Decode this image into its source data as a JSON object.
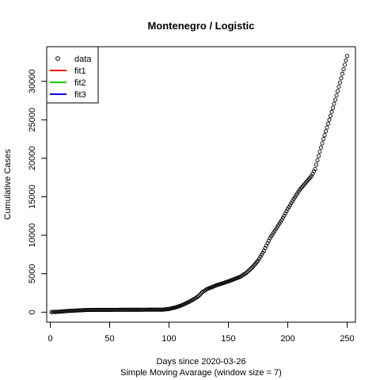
{
  "chart_data": {
    "type": "scatter",
    "title": "Montenegro / Logistic",
    "xlabel": "Days since 2020-03-26",
    "subtitle": "Simple Moving Avarage (window size = 7)",
    "ylabel": "Cumulative Cases",
    "xlim": [
      -3,
      257
    ],
    "ylim": [
      -1300,
      34500
    ],
    "x_ticks": [
      0,
      50,
      100,
      150,
      200,
      250
    ],
    "y_ticks": [
      0,
      5000,
      10000,
      15000,
      20000,
      25000,
      30000
    ],
    "legend_position": "top-left",
    "legend": [
      {
        "label": "data",
        "type": "point",
        "color": "#000000"
      },
      {
        "label": "fit1",
        "type": "line",
        "color": "#ff0000"
      },
      {
        "label": "fit2",
        "type": "line",
        "color": "#00cd00"
      },
      {
        "label": "fit3",
        "type": "line",
        "color": "#0000ff"
      }
    ],
    "series": [
      {
        "name": "data",
        "anchors": [
          [
            1,
            20
          ],
          [
            5,
            40
          ],
          [
            10,
            90
          ],
          [
            15,
            160
          ],
          [
            20,
            200
          ],
          [
            25,
            240
          ],
          [
            30,
            280
          ],
          [
            40,
            300
          ],
          [
            60,
            310
          ],
          [
            80,
            320
          ],
          [
            95,
            330
          ],
          [
            100,
            420
          ],
          [
            105,
            600
          ],
          [
            110,
            850
          ],
          [
            115,
            1200
          ],
          [
            120,
            1600
          ],
          [
            125,
            2100
          ],
          [
            128,
            2600
          ],
          [
            132,
            3000
          ],
          [
            140,
            3500
          ],
          [
            150,
            4000
          ],
          [
            155,
            4300
          ],
          [
            160,
            4600
          ],
          [
            165,
            5100
          ],
          [
            170,
            5800
          ],
          [
            175,
            6700
          ],
          [
            180,
            8000
          ],
          [
            185,
            9600
          ],
          [
            190,
            10800
          ],
          [
            195,
            12000
          ],
          [
            200,
            13400
          ],
          [
            205,
            14700
          ],
          [
            210,
            15900
          ],
          [
            215,
            16800
          ],
          [
            220,
            17700
          ],
          [
            223,
            18600
          ],
          [
            226,
            20300
          ],
          [
            230,
            22500
          ],
          [
            235,
            25000
          ],
          [
            240,
            27600
          ],
          [
            245,
            30400
          ],
          [
            250,
            33300
          ]
        ]
      }
    ]
  }
}
